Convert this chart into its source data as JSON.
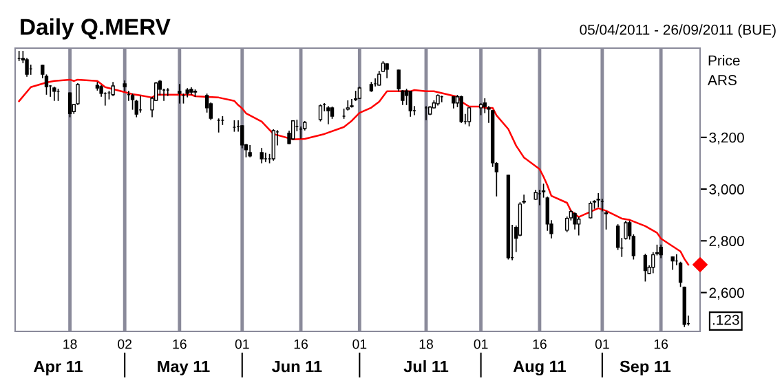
{
  "chart_data": {
    "type": "candlestick",
    "title": "Daily Q.MERV",
    "subtitle": "05/04/2011 - 26/09/2011 (BUE)",
    "ylabel": "Price ARS",
    "x": [
      "2011-04-05",
      "2011-04-06",
      "2011-04-07",
      "2011-04-08",
      "2011-04-11",
      "2011-04-12",
      "2011-04-13",
      "2011-04-14",
      "2011-04-15",
      "2011-04-18",
      "2011-04-19",
      "2011-04-20",
      "2011-04-25",
      "2011-04-26",
      "2011-04-27",
      "2011-04-28",
      "2011-04-29",
      "2011-05-02",
      "2011-05-03",
      "2011-05-04",
      "2011-05-05",
      "2011-05-06",
      "2011-05-09",
      "2011-05-10",
      "2011-05-11",
      "2011-05-12",
      "2011-05-13",
      "2011-05-16",
      "2011-05-17",
      "2011-05-18",
      "2011-05-19",
      "2011-05-20",
      "2011-05-23",
      "2011-05-24",
      "2011-05-26",
      "2011-05-27",
      "2011-05-30",
      "2011-05-31",
      "2011-06-01",
      "2011-06-02",
      "2011-06-03",
      "2011-06-06",
      "2011-06-07",
      "2011-06-08",
      "2011-06-09",
      "2011-06-10",
      "2011-06-13",
      "2011-06-14",
      "2011-06-15",
      "2011-06-16",
      "2011-06-17",
      "2011-06-21",
      "2011-06-22",
      "2011-06-23",
      "2011-06-24",
      "2011-06-27",
      "2011-06-28",
      "2011-06-29",
      "2011-06-30",
      "2011-07-01",
      "2011-07-04",
      "2011-07-05",
      "2011-07-06",
      "2011-07-07",
      "2011-07-08",
      "2011-07-11",
      "2011-07-12",
      "2011-07-13",
      "2011-07-14",
      "2011-07-15",
      "2011-07-18",
      "2011-07-19",
      "2011-07-20",
      "2011-07-21",
      "2011-07-22",
      "2011-07-25",
      "2011-07-26",
      "2011-07-27",
      "2011-07-28",
      "2011-07-29",
      "2011-08-01",
      "2011-08-02",
      "2011-08-03",
      "2011-08-04",
      "2011-08-05",
      "2011-08-08",
      "2011-08-09",
      "2011-08-10",
      "2011-08-11",
      "2011-08-12",
      "2011-08-15",
      "2011-08-16",
      "2011-08-17",
      "2011-08-18",
      "2011-08-19",
      "2011-08-23",
      "2011-08-24",
      "2011-08-25",
      "2011-08-26",
      "2011-08-29",
      "2011-08-30",
      "2011-08-31",
      "2011-09-01",
      "2011-09-02",
      "2011-09-05",
      "2011-09-06",
      "2011-09-07",
      "2011-09-08",
      "2011-09-09",
      "2011-09-12",
      "2011-09-13",
      "2011-09-14",
      "2011-09-15",
      "2011-09-16",
      "2011-09-19",
      "2011-09-20",
      "2011-09-21",
      "2011-09-22",
      "2011-09-23"
    ],
    "ohlc": [
      [
        3505,
        3532,
        3497,
        3505
      ],
      [
        3505,
        3532,
        3489,
        3500
      ],
      [
        3500,
        3505,
        3436,
        3444
      ],
      [
        3465,
        3479,
        3444,
        3465
      ],
      [
        3479,
        3479,
        3431,
        3444
      ],
      [
        3436,
        3441,
        3367,
        3396
      ],
      [
        3399,
        3399,
        3359,
        3399
      ],
      [
        3391,
        3394,
        3343,
        3378
      ],
      [
        3378,
        3386,
        3343,
        3378
      ],
      [
        3372,
        3372,
        3280,
        3292
      ],
      [
        3300,
        3327,
        3293,
        3327
      ],
      [
        3330,
        3407,
        3327,
        3404
      ],
      [
        3401,
        3412,
        3383,
        3391
      ],
      [
        3396,
        3399,
        3359,
        3370
      ],
      [
        3370,
        3372,
        3325,
        3370
      ],
      [
        3372,
        3378,
        3349,
        3372
      ],
      [
        3365,
        3412,
        3362,
        3399
      ],
      [
        3407,
        3418,
        3380,
        3396
      ],
      [
        3365,
        3378,
        3343,
        3365
      ],
      [
        3362,
        3367,
        3309,
        3346
      ],
      [
        3340,
        3343,
        3280,
        3290
      ],
      [
        3306,
        3359,
        3298,
        3306
      ],
      [
        3306,
        3354,
        3280,
        3351
      ],
      [
        3343,
        3412,
        3343,
        3410
      ],
      [
        3417,
        3420,
        3364,
        3386
      ],
      [
        3383,
        3386,
        3343,
        3383
      ],
      [
        3383,
        3388,
        3362,
        3383
      ],
      [
        3378,
        3404,
        3333,
        3370
      ],
      [
        3362,
        3367,
        3333,
        3362
      ],
      [
        3383,
        3388,
        3357,
        3370
      ],
      [
        3386,
        3391,
        3367,
        3375
      ],
      [
        3378,
        3383,
        3359,
        3375
      ],
      [
        3362,
        3367,
        3298,
        3314
      ],
      [
        3330,
        3333,
        3269,
        3274
      ],
      [
        3266,
        3271,
        3221,
        3266
      ],
      [
        3266,
        3280,
        3250,
        3266
      ],
      [
        3239,
        3264,
        3224,
        3239
      ],
      [
        3242,
        3264,
        3224,
        3242
      ],
      [
        3245,
        3245,
        3160,
        3171
      ],
      [
        3171,
        3173,
        3125,
        3152
      ],
      [
        3141,
        3168,
        3125,
        3128
      ],
      [
        3141,
        3157,
        3102,
        3117
      ],
      [
        3117,
        3139,
        3107,
        3117
      ],
      [
        3117,
        3134,
        3102,
        3117
      ],
      [
        3117,
        3229,
        3112,
        3226
      ],
      [
        3221,
        3226,
        3171,
        3221
      ],
      [
        3216,
        3224,
        3176,
        3176
      ],
      [
        3194,
        3264,
        3192,
        3264
      ],
      [
        3242,
        3266,
        3226,
        3242
      ],
      [
        3232,
        3240,
        3197,
        3232
      ],
      [
        3234,
        3261,
        3229,
        3258
      ],
      [
        3269,
        3325,
        3264,
        3322
      ],
      [
        3327,
        3330,
        3303,
        3327
      ],
      [
        3314,
        3319,
        3253,
        3303
      ],
      [
        3314,
        3317,
        3274,
        3282
      ],
      [
        3282,
        3309,
        3274,
        3282
      ],
      [
        3309,
        3341,
        3306,
        3314
      ],
      [
        3319,
        3346,
        3317,
        3322
      ],
      [
        3346,
        3378,
        3343,
        3349
      ],
      [
        3351,
        3394,
        3351,
        3391
      ],
      [
        3404,
        3412,
        3378,
        3380
      ],
      [
        3407,
        3426,
        3399,
        3407
      ],
      [
        3402,
        3455,
        3402,
        3444
      ],
      [
        3455,
        3492,
        3455,
        3487
      ],
      [
        3484,
        3484,
        3431,
        3463
      ],
      [
        3460,
        3460,
        3380,
        3388
      ],
      [
        3380,
        3380,
        3327,
        3343
      ],
      [
        3380,
        3386,
        3327,
        3362
      ],
      [
        3378,
        3378,
        3282,
        3303
      ],
      [
        3303,
        3319,
        3288,
        3303
      ],
      [
        3314,
        3319,
        3269,
        3314
      ],
      [
        3290,
        3319,
        3288,
        3317
      ],
      [
        3314,
        3341,
        3314,
        3333
      ],
      [
        3330,
        3364,
        3325,
        3362
      ],
      [
        3357,
        3359,
        3338,
        3357
      ],
      [
        3357,
        3357,
        3314,
        3333
      ],
      [
        3333,
        3362,
        3319,
        3357
      ],
      [
        3357,
        3359,
        3258,
        3261
      ],
      [
        3261,
        3288,
        3253,
        3261
      ],
      [
        3261,
        3314,
        3245,
        3314
      ],
      [
        3314,
        3330,
        3288,
        3327
      ],
      [
        3333,
        3349,
        3296,
        3319
      ],
      [
        3314,
        3319,
        3258,
        3309
      ],
      [
        3303,
        3303,
        3088,
        3102
      ],
      [
        3099,
        3102,
        2974,
        3067
      ],
      [
        3054,
        3054,
        2730,
        2735
      ],
      [
        2735,
        2860,
        2727,
        2735
      ],
      [
        2852,
        2857,
        2759,
        2810
      ],
      [
        2822,
        2947,
        2820,
        2942
      ],
      [
        2950,
        2977,
        2945,
        2953
      ],
      [
        2961,
        2995,
        2961,
        2987
      ],
      [
        2982,
        2995,
        2940,
        2982
      ],
      [
        2990,
        3019,
        2969,
        2993
      ],
      [
        2966,
        2969,
        2841,
        2865
      ],
      [
        2865,
        2878,
        2812,
        2828
      ],
      [
        2841,
        2892,
        2836,
        2887
      ],
      [
        2889,
        2918,
        2881,
        2913
      ],
      [
        2905,
        2908,
        2846,
        2865
      ],
      [
        2865,
        2889,
        2823,
        2884
      ],
      [
        2889,
        2950,
        2889,
        2945
      ],
      [
        2950,
        2955,
        2926,
        2953
      ],
      [
        2961,
        2982,
        2932,
        2958
      ],
      [
        2953,
        2961,
        2916,
        2953
      ],
      [
        2908,
        2913,
        2846,
        2905
      ],
      [
        2857,
        2862,
        2767,
        2775
      ],
      [
        2772,
        2809,
        2740,
        2772
      ],
      [
        2809,
        2876,
        2807,
        2870
      ],
      [
        2870,
        2876,
        2807,
        2820
      ],
      [
        2817,
        2823,
        2730,
        2743
      ],
      [
        2743,
        2748,
        2645,
        2685
      ],
      [
        2674,
        2703,
        2674,
        2698
      ],
      [
        2698,
        2754,
        2677,
        2746
      ],
      [
        2751,
        2783,
        2746,
        2754
      ],
      [
        2775,
        2783,
        2735,
        2746
      ],
      [
        2738,
        2738,
        2690,
        2722
      ],
      [
        2722,
        2746,
        2708,
        2722
      ],
      [
        2714,
        2717,
        2624,
        2640
      ],
      [
        2621,
        2621,
        2469,
        2477
      ],
      [
        2480,
        2509,
        2475,
        2480
      ]
    ],
    "color": "#000000",
    "series": [
      {
        "type": "line",
        "color": "#ff0000",
        "x": [
          "2011-04-05",
          "2011-04-08",
          "2011-04-12",
          "2011-04-14",
          "2011-04-18",
          "2011-04-19",
          "2011-04-20",
          "2011-04-25",
          "2011-04-27",
          "2011-05-02",
          "2011-05-04",
          "2011-05-06",
          "2011-05-09",
          "2011-05-10",
          "2011-05-19",
          "2011-05-20",
          "2011-05-26",
          "2011-05-30",
          "2011-05-31",
          "2011-06-01",
          "2011-06-02",
          "2011-06-06",
          "2011-06-09",
          "2011-06-14",
          "2011-06-17",
          "2011-06-22",
          "2011-06-27",
          "2011-06-29",
          "2011-07-01",
          "2011-07-04",
          "2011-07-06",
          "2011-07-08",
          "2011-07-14",
          "2011-07-15",
          "2011-07-18",
          "2011-07-20",
          "2011-07-26",
          "2011-07-27",
          "2011-07-29",
          "2011-08-01",
          "2011-08-02",
          "2011-08-04",
          "2011-08-05",
          "2011-08-08",
          "2011-08-10",
          "2011-08-12",
          "2011-08-16",
          "2011-08-17",
          "2011-08-18",
          "2011-08-19",
          "2011-08-23",
          "2011-08-24",
          "2011-08-26",
          "2011-08-31",
          "2011-09-02",
          "2011-09-06",
          "2011-09-08",
          "2011-09-12",
          "2011-09-15",
          "2011-09-16",
          "2011-09-21",
          "2011-09-22",
          "2011-09-23"
        ],
        "values": [
          3340,
          3394,
          3412,
          3418,
          3423,
          3418,
          3423,
          3418,
          3394,
          3375,
          3367,
          3362,
          3354,
          3365,
          3365,
          3359,
          3354,
          3341,
          3325,
          3312,
          3293,
          3261,
          3213,
          3192,
          3194,
          3213,
          3240,
          3264,
          3295,
          3315,
          3338,
          3378,
          3378,
          3383,
          3378,
          3378,
          3357,
          3338,
          3319,
          3319,
          3314,
          3314,
          3285,
          3232,
          3168,
          3122,
          3077,
          3048,
          3014,
          2974,
          2947,
          2916,
          2892,
          2926,
          2916,
          2886,
          2881,
          2857,
          2831,
          2809,
          2759,
          2730,
          2708
        ]
      },
      {
        "type": "scatter",
        "color": "#ff0000",
        "marker": "diamond",
        "x": [
          "2011-09-26"
        ],
        "values": [
          2708
        ]
      }
    ],
    "xlim": [
      "2011-04-04",
      "2011-09-26"
    ],
    "xticks": [
      {
        "value": "2011-04-18",
        "label": "18"
      },
      {
        "value": "2011-05-02",
        "label": "02"
      },
      {
        "value": "2011-05-16",
        "label": "16"
      },
      {
        "value": "2011-06-01",
        "label": "01"
      },
      {
        "value": "2011-06-16",
        "label": "16"
      },
      {
        "value": "2011-07-01",
        "label": "01"
      },
      {
        "value": "2011-07-18",
        "label": "18"
      },
      {
        "value": "2011-08-01",
        "label": "01"
      },
      {
        "value": "2011-08-16",
        "label": "16"
      },
      {
        "value": "2011-09-01",
        "label": "01"
      },
      {
        "value": "2011-09-16",
        "label": "16"
      }
    ],
    "x2lim": [
      "2011-04-04",
      "2011-09-26"
    ],
    "x2ticks": [
      {
        "value": "2011-04-15",
        "label": "Apr 11"
      },
      {
        "value": "2011-05-02",
        "label": null
      },
      {
        "value": "2011-05-17",
        "label": "May 11"
      },
      {
        "value": "2011-06-01",
        "label": null
      },
      {
        "value": "2011-06-15",
        "label": "Jun 11"
      },
      {
        "value": "2011-07-01",
        "label": null
      },
      {
        "value": "2011-07-18",
        "label": "Jul 11"
      },
      {
        "value": "2011-08-01",
        "label": null
      },
      {
        "value": "2011-08-16",
        "label": "Aug 11"
      },
      {
        "value": "2011-09-01",
        "label": null
      },
      {
        "value": "2011-09-12",
        "label": "Sep 11"
      }
    ],
    "ylim": [
      2450,
      3545
    ],
    "yticks": [
      {
        "value": 2600,
        "label": "2,600"
      },
      {
        "value": 2800,
        "label": "2,800"
      },
      {
        "value": 3000,
        "label": "3,000"
      },
      {
        "value": 3200,
        "label": "3,200"
      }
    ],
    "grid": "x",
    "legend": false,
    "annotations": [
      ".123"
    ]
  }
}
